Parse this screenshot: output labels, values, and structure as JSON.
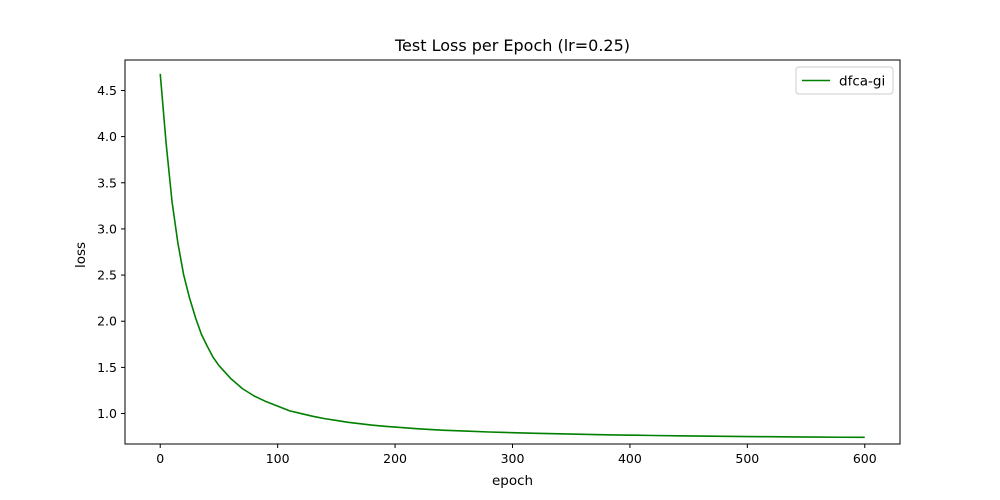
{
  "chart_data": {
    "type": "line",
    "title": "Test Loss per Epoch (lr=0.25)",
    "xlabel": "epoch",
    "ylabel": "loss",
    "xlim": [
      -30,
      630
    ],
    "ylim": [
      0.67,
      4.83
    ],
    "xticks": [
      0,
      100,
      200,
      300,
      400,
      500,
      600
    ],
    "yticks": [
      1.0,
      1.5,
      2.0,
      2.5,
      3.0,
      3.5,
      4.0,
      4.5
    ],
    "ytick_labels": [
      "1.0",
      "1.5",
      "2.0",
      "2.5",
      "3.0",
      "3.5",
      "4.0",
      "4.5"
    ],
    "grid": false,
    "legend_position": "top-right",
    "series": [
      {
        "name": "dfca-gi",
        "color": "#008000",
        "x": [
          0,
          5,
          10,
          15,
          20,
          25,
          30,
          35,
          40,
          45,
          50,
          60,
          70,
          80,
          90,
          100,
          110,
          120,
          130,
          140,
          150,
          160,
          170,
          180,
          190,
          200,
          220,
          240,
          260,
          280,
          300,
          320,
          340,
          360,
          380,
          400,
          420,
          440,
          460,
          480,
          500,
          520,
          540,
          560,
          580,
          600
        ],
        "y": [
          4.68,
          3.93,
          3.3,
          2.85,
          2.5,
          2.25,
          2.04,
          1.86,
          1.73,
          1.61,
          1.52,
          1.38,
          1.27,
          1.19,
          1.13,
          1.08,
          1.03,
          1.0,
          0.97,
          0.945,
          0.925,
          0.905,
          0.89,
          0.875,
          0.863,
          0.853,
          0.835,
          0.82,
          0.81,
          0.8,
          0.793,
          0.786,
          0.78,
          0.775,
          0.77,
          0.766,
          0.762,
          0.759,
          0.756,
          0.753,
          0.751,
          0.749,
          0.747,
          0.745,
          0.743,
          0.742
        ]
      }
    ]
  }
}
